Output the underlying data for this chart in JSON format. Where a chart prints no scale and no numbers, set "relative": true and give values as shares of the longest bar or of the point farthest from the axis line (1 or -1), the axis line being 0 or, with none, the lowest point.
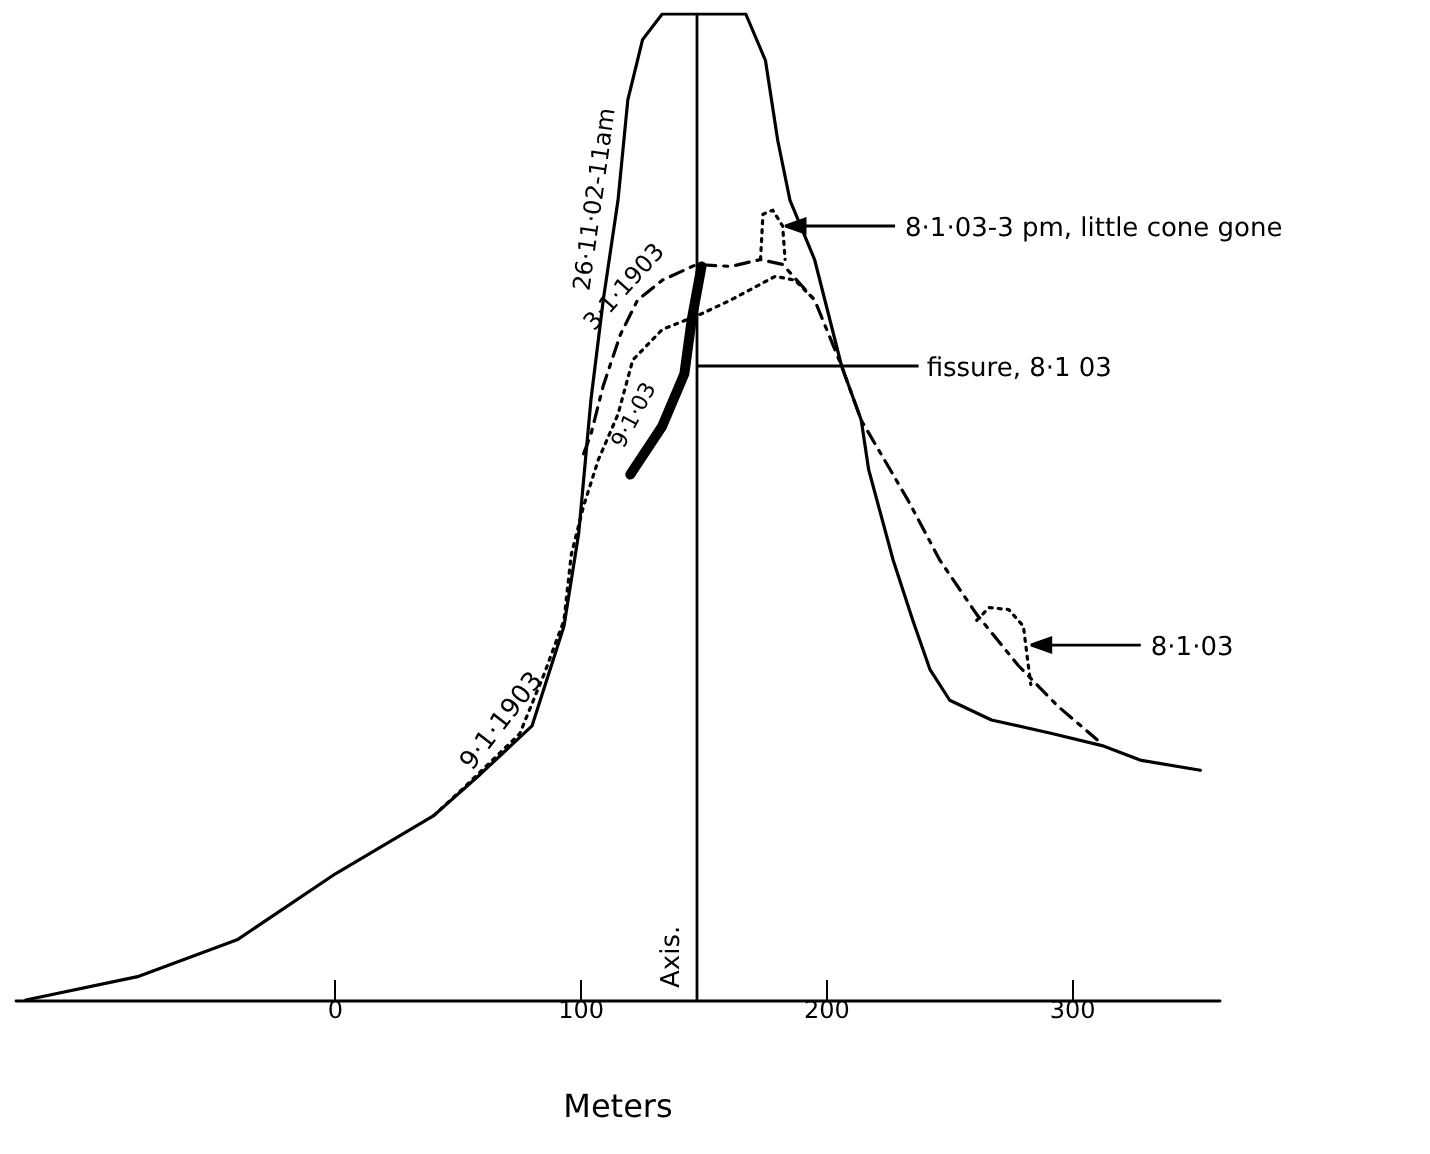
{
  "chart_data": {
    "type": "line",
    "xlabel": "Meters",
    "xlim": [
      -130,
      360
    ],
    "xticks": [
      0,
      100,
      200,
      300
    ],
    "relative": true,
    "tick_labels": "x",
    "grid": false,
    "legend": false,
    "marker": "none",
    "series": [
      {
        "name": "26·11·02-11am",
        "color": "#000000",
        "line_style": "solid",
        "x": [
          -126,
          -80,
          -40,
          0,
          40,
          59,
          80,
          93,
          99,
          104,
          109,
          115,
          119,
          125,
          133,
          167,
          175,
          180,
          185,
          195,
          206,
          214,
          217,
          227,
          235,
          242,
          250,
          267,
          292,
          312,
          328,
          352
        ],
        "values": [
          0,
          0.024,
          0.061,
          0.128,
          0.187,
          0.229,
          0.278,
          0.379,
          0.473,
          0.609,
          0.71,
          0.811,
          0.913,
          0.974,
          1,
          1,
          0.953,
          0.872,
          0.811,
          0.751,
          0.643,
          0.588,
          0.538,
          0.446,
          0.385,
          0.335,
          0.304,
          0.284,
          0.27,
          0.258,
          0.243,
          0.233
        ]
      },
      {
        "name": "3·1·1903",
        "color": "#000000",
        "line_style": "dashed",
        "x": [
          101,
          104,
          109,
          116,
          123,
          133,
          147,
          161,
          173,
          182,
          195,
          206,
          214,
          233,
          246,
          261,
          278,
          294,
          310
        ],
        "values": [
          0.554,
          0.574,
          0.623,
          0.675,
          0.71,
          0.73,
          0.746,
          0.744,
          0.751,
          0.746,
          0.71,
          0.643,
          0.588,
          0.507,
          0.446,
          0.391,
          0.339,
          0.298,
          0.264
        ]
      },
      {
        "name": "9·1·03",
        "color": "#000000",
        "line_style": "dotted",
        "x": [
          40,
          53,
          75,
          85,
          93,
          96,
          101,
          107,
          115,
          121,
          133,
          149,
          161,
          179,
          187,
          195
        ],
        "values": [
          0.187,
          0.217,
          0.27,
          0.331,
          0.385,
          0.452,
          0.501,
          0.548,
          0.594,
          0.649,
          0.68,
          0.696,
          0.71,
          0.734,
          0.73,
          0.71
        ]
      },
      {
        "color": "#000000",
        "line_style": "dotted",
        "x": [
          173,
          174,
          178,
          182,
          183
        ],
        "values": [
          0.751,
          0.797,
          0.801,
          0.785,
          0.751
        ]
      },
      {
        "color": "#000000",
        "line_style": "dotted",
        "x": [
          261,
          266,
          274,
          280,
          282,
          283
        ],
        "values": [
          0.385,
          0.398,
          0.396,
          0.379,
          0.339,
          0.32
        ]
      },
      {
        "color": "#000000",
        "line_style": "solid",
        "x": [
          120,
          133,
          142,
          145,
          149
        ],
        "values": [
          0.533,
          0.582,
          0.635,
          0.69,
          0.744
        ]
      }
    ],
    "ref_lines": [
      {
        "axis": "x",
        "value": 147,
        "label": "Axis."
      }
    ],
    "annotations": [
      {
        "text": "8·1·03-3 pm, little cone gone",
        "x": 183,
        "y": 0.785
      },
      {
        "text": "fissure, 8·1 03",
        "x": 147,
        "y": 0.643
      },
      {
        "text": "8·1·03",
        "x": 283,
        "y": 0.36
      },
      {
        "text": "9·1·1903",
        "x": 75,
        "y": 0.27
      }
    ]
  }
}
